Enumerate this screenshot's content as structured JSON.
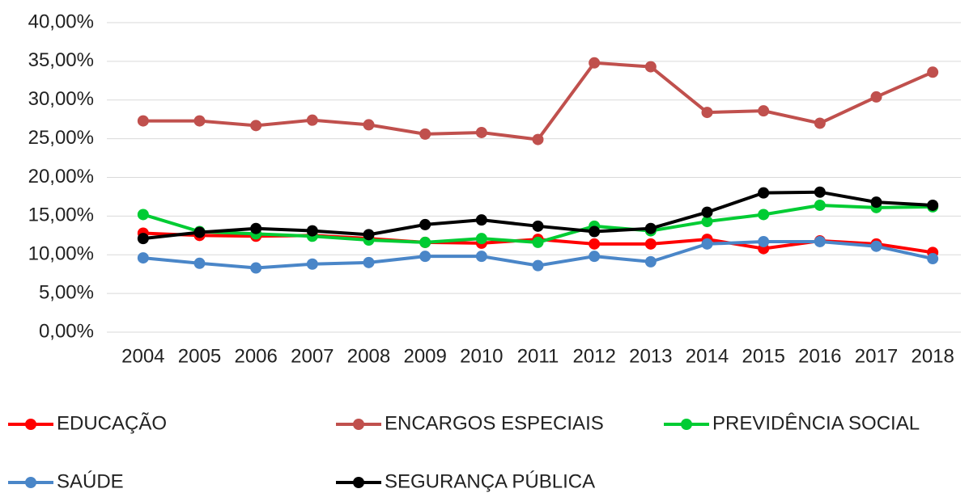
{
  "chart_data": {
    "type": "line",
    "categories": [
      "2004",
      "2005",
      "2006",
      "2007",
      "2008",
      "2009",
      "2010",
      "2011",
      "2012",
      "2013",
      "2014",
      "2015",
      "2016",
      "2017",
      "2018"
    ],
    "series": [
      {
        "name": "EDUCAÇÃO",
        "color": "#ff0000",
        "values": [
          12.8,
          12.5,
          12.4,
          12.5,
          12.1,
          11.6,
          11.5,
          12.0,
          11.4,
          11.4,
          12.0,
          10.8,
          11.8,
          11.4,
          10.3
        ]
      },
      {
        "name": "ENCARGOS ESPECIAIS",
        "color": "#c0504d",
        "values": [
          27.3,
          27.3,
          26.7,
          27.4,
          26.8,
          25.6,
          25.8,
          24.9,
          34.8,
          34.3,
          28.4,
          28.6,
          27.0,
          30.4,
          33.6
        ]
      },
      {
        "name": "PREVIDÊNCIA SOCIAL",
        "color": "#00cc33",
        "values": [
          15.2,
          13.0,
          12.7,
          12.4,
          11.9,
          11.6,
          12.1,
          11.6,
          13.7,
          13.1,
          14.3,
          15.2,
          16.4,
          16.1,
          16.2
        ]
      },
      {
        "name": "SAÚDE",
        "color": "#4a86c8",
        "values": [
          9.6,
          8.9,
          8.3,
          8.8,
          9.0,
          9.8,
          9.8,
          8.6,
          9.8,
          9.1,
          11.4,
          11.7,
          11.7,
          11.1,
          9.5
        ]
      },
      {
        "name": "SEGURANÇA PÚBLICA",
        "color": "#000000",
        "values": [
          12.1,
          12.9,
          13.4,
          13.1,
          12.6,
          13.9,
          14.5,
          13.7,
          13.0,
          13.4,
          15.5,
          18.0,
          18.1,
          16.8,
          16.4
        ]
      }
    ],
    "ylim": [
      0,
      40
    ],
    "yticks": [
      {
        "value": 0,
        "label": "0,00%"
      },
      {
        "value": 5,
        "label": "5,00%"
      },
      {
        "value": 10,
        "label": "10,00%"
      },
      {
        "value": 15,
        "label": "15,00%"
      },
      {
        "value": 20,
        "label": "20,00%"
      },
      {
        "value": 25,
        "label": "25,00%"
      },
      {
        "value": 30,
        "label": "30,00%"
      },
      {
        "value": 35,
        "label": "35,00%"
      },
      {
        "value": 40,
        "label": "40,00%"
      }
    ],
    "grid": true,
    "legend": "bottom"
  }
}
